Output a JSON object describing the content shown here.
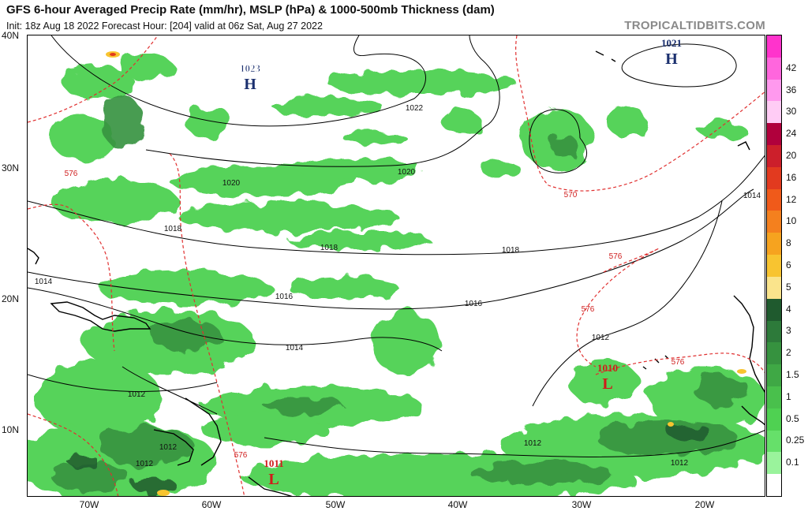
{
  "header": {
    "title": "GFS 6-hour Averaged Precip Rate (mm/hr), MSLP (hPa) & 1000-500mb Thickness (dam)",
    "subtitle": "Init: 18z Aug 18 2022   Forecast Hour: [204]   valid at 06z Sat, Aug 27 2022",
    "site": "TROPICALTIDBITS.COM"
  },
  "axes": {
    "lat_labels": [
      "40N",
      "30N",
      "20N",
      "10N"
    ],
    "lon_labels": [
      "70W",
      "60W",
      "50W",
      "40W",
      "30W",
      "20W"
    ]
  },
  "pressure_centers": [
    {
      "type": "H",
      "value": "1023",
      "color": "#1a2f6e"
    },
    {
      "type": "H",
      "value": "1021",
      "color": "#1a2f6e"
    },
    {
      "type": "L",
      "value": "1010",
      "color": "#d11a1a"
    },
    {
      "type": "L",
      "value": "1011",
      "color": "#d11a1a"
    }
  ],
  "isobar_labels": [
    "1022",
    "1020",
    "1020",
    "1018",
    "1018",
    "1018",
    "1016",
    "1016",
    "1014",
    "1014",
    "1014",
    "1012",
    "1012",
    "1012",
    "1012",
    "1012",
    "1012"
  ],
  "thickness_labels": [
    "576",
    "570",
    "576",
    "576",
    "576",
    "576"
  ],
  "colorbar": {
    "ticks": [
      "42",
      "36",
      "30",
      "24",
      "20",
      "16",
      "12",
      "10",
      "8",
      "6",
      "5",
      "4",
      "3",
      "2",
      "1.5",
      "1",
      "0.5",
      "0.25",
      "0.1"
    ],
    "colors": [
      "#ff33cc",
      "#ff66dd",
      "#ff99ee",
      "#ffccf5",
      "#b0003c",
      "#cc1f2b",
      "#e23a1f",
      "#f05a1a",
      "#f4801e",
      "#f6a31f",
      "#f8c430",
      "#fae48c",
      "#1f5a2e",
      "#2d7a3a",
      "#36923f",
      "#3fa845",
      "#49c04c",
      "#4fd152",
      "#66e06a",
      "#9af39c",
      "#ffffff"
    ]
  }
}
